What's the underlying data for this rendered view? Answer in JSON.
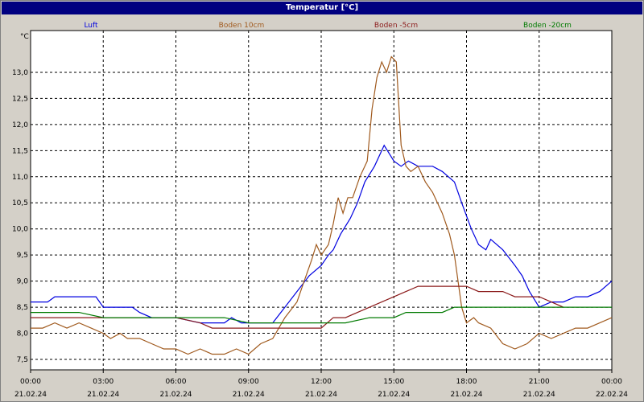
{
  "window": {
    "title": "Temperatur [°C]"
  },
  "colors": {
    "luft": "#0000e0",
    "boden10": "#a05a1e",
    "boden5": "#8b1a1a",
    "boden20": "#007a00",
    "background": "#d4d0c8",
    "titlebar": "#000080"
  },
  "chart_data": {
    "type": "line",
    "title": "Temperatur [°C]",
    "ylabel": "°C",
    "ylim": [
      7.3,
      13.8
    ],
    "xlim": [
      0,
      24
    ],
    "grid": true,
    "legend": "top",
    "yticks": [
      "7,5",
      "8,0",
      "8,5",
      "9,0",
      "9,5",
      "10,0",
      "10,5",
      "11,0",
      "11,5",
      "12,0",
      "12,5",
      "13,0"
    ],
    "ytick_values": [
      7.5,
      8.0,
      8.5,
      9.0,
      9.5,
      10.0,
      10.5,
      11.0,
      11.5,
      12.0,
      12.5,
      13.0
    ],
    "xtick_values": [
      0,
      3,
      6,
      9,
      12,
      15,
      18,
      21,
      24
    ],
    "xticks": [
      {
        "time": "00:00",
        "date": "21.02.24"
      },
      {
        "time": "03:00",
        "date": "21.02.24"
      },
      {
        "time": "06:00",
        "date": "21.02.24"
      },
      {
        "time": "09:00",
        "date": "21.02.24"
      },
      {
        "time": "12:00",
        "date": "21.02.24"
      },
      {
        "time": "15:00",
        "date": "21.02.24"
      },
      {
        "time": "18:00",
        "date": "21.02.24"
      },
      {
        "time": "21:00",
        "date": "21.02.24"
      },
      {
        "time": "00:00",
        "date": "22.02.24"
      }
    ],
    "series": [
      {
        "name": "Luft",
        "color": "#0000e0",
        "points": [
          [
            0,
            8.6
          ],
          [
            0.7,
            8.6
          ],
          [
            1,
            8.7
          ],
          [
            2.7,
            8.7
          ],
          [
            3,
            8.5
          ],
          [
            4.2,
            8.5
          ],
          [
            4.5,
            8.4
          ],
          [
            5,
            8.3
          ],
          [
            6,
            8.3
          ],
          [
            7,
            8.2
          ],
          [
            7.5,
            8.2
          ],
          [
            8,
            8.2
          ],
          [
            8.3,
            8.3
          ],
          [
            8.7,
            8.2
          ],
          [
            9.3,
            8.2
          ],
          [
            10,
            8.2
          ],
          [
            10.5,
            8.5
          ],
          [
            11,
            8.8
          ],
          [
            11.5,
            9.1
          ],
          [
            12,
            9.3
          ],
          [
            12.3,
            9.5
          ],
          [
            12.5,
            9.6
          ],
          [
            12.8,
            9.9
          ],
          [
            13.2,
            10.2
          ],
          [
            13.5,
            10.5
          ],
          [
            13.8,
            10.9
          ],
          [
            14.2,
            11.2
          ],
          [
            14.6,
            11.6
          ],
          [
            15,
            11.3
          ],
          [
            15.3,
            11.2
          ],
          [
            15.6,
            11.3
          ],
          [
            16,
            11.2
          ],
          [
            16.6,
            11.2
          ],
          [
            17,
            11.1
          ],
          [
            17.5,
            10.9
          ],
          [
            17.8,
            10.5
          ],
          [
            18.2,
            10.0
          ],
          [
            18.5,
            9.7
          ],
          [
            18.8,
            9.6
          ],
          [
            19,
            9.8
          ],
          [
            19.5,
            9.6
          ],
          [
            20,
            9.3
          ],
          [
            20.3,
            9.1
          ],
          [
            20.6,
            8.8
          ],
          [
            21,
            8.5
          ],
          [
            21.5,
            8.6
          ],
          [
            22,
            8.6
          ],
          [
            22.5,
            8.7
          ],
          [
            23,
            8.7
          ],
          [
            23.5,
            8.8
          ],
          [
            24,
            9.0
          ]
        ]
      },
      {
        "name": "Boden 10cm",
        "color": "#a05a1e",
        "points": [
          [
            0,
            8.1
          ],
          [
            0.5,
            8.1
          ],
          [
            1,
            8.2
          ],
          [
            1.5,
            8.1
          ],
          [
            2,
            8.2
          ],
          [
            2.5,
            8.1
          ],
          [
            3,
            8.0
          ],
          [
            3.3,
            7.9
          ],
          [
            3.7,
            8.0
          ],
          [
            4,
            7.9
          ],
          [
            4.5,
            7.9
          ],
          [
            5,
            7.8
          ],
          [
            5.5,
            7.7
          ],
          [
            6,
            7.7
          ],
          [
            6.5,
            7.6
          ],
          [
            7,
            7.7
          ],
          [
            7.5,
            7.6
          ],
          [
            8,
            7.6
          ],
          [
            8.5,
            7.7
          ],
          [
            9,
            7.6
          ],
          [
            9.5,
            7.8
          ],
          [
            10,
            7.9
          ],
          [
            10.5,
            8.3
          ],
          [
            11,
            8.6
          ],
          [
            11.3,
            9.0
          ],
          [
            11.6,
            9.4
          ],
          [
            11.8,
            9.7
          ],
          [
            12,
            9.5
          ],
          [
            12.3,
            9.7
          ],
          [
            12.5,
            10.1
          ],
          [
            12.7,
            10.6
          ],
          [
            12.9,
            10.3
          ],
          [
            13.1,
            10.6
          ],
          [
            13.3,
            10.6
          ],
          [
            13.6,
            11.0
          ],
          [
            13.9,
            11.3
          ],
          [
            14.1,
            12.3
          ],
          [
            14.3,
            12.9
          ],
          [
            14.5,
            13.2
          ],
          [
            14.7,
            13.0
          ],
          [
            14.9,
            13.3
          ],
          [
            15.1,
            13.2
          ],
          [
            15.3,
            11.6
          ],
          [
            15.5,
            11.2
          ],
          [
            15.7,
            11.1
          ],
          [
            16,
            11.2
          ],
          [
            16.3,
            10.9
          ],
          [
            16.6,
            10.7
          ],
          [
            17,
            10.3
          ],
          [
            17.3,
            9.9
          ],
          [
            17.5,
            9.5
          ],
          [
            17.8,
            8.5
          ],
          [
            18,
            8.2
          ],
          [
            18.3,
            8.3
          ],
          [
            18.5,
            8.2
          ],
          [
            19,
            8.1
          ],
          [
            19.5,
            7.8
          ],
          [
            20,
            7.7
          ],
          [
            20.5,
            7.8
          ],
          [
            21,
            8.0
          ],
          [
            21.5,
            7.9
          ],
          [
            22,
            8.0
          ],
          [
            22.5,
            8.1
          ],
          [
            23,
            8.1
          ],
          [
            23.5,
            8.2
          ],
          [
            24,
            8.3
          ]
        ]
      },
      {
        "name": "Boden -5cm",
        "color": "#8b1a1a",
        "points": [
          [
            0,
            8.3
          ],
          [
            1,
            8.3
          ],
          [
            2,
            8.3
          ],
          [
            3,
            8.3
          ],
          [
            4,
            8.3
          ],
          [
            5,
            8.3
          ],
          [
            6,
            8.3
          ],
          [
            7,
            8.2
          ],
          [
            7.5,
            8.1
          ],
          [
            8,
            8.1
          ],
          [
            9,
            8.1
          ],
          [
            10,
            8.1
          ],
          [
            11,
            8.1
          ],
          [
            12,
            8.1
          ],
          [
            12.5,
            8.3
          ],
          [
            13,
            8.3
          ],
          [
            13.5,
            8.4
          ],
          [
            14,
            8.5
          ],
          [
            14.5,
            8.6
          ],
          [
            15,
            8.7
          ],
          [
            15.5,
            8.8
          ],
          [
            16,
            8.9
          ],
          [
            17,
            8.9
          ],
          [
            18,
            8.9
          ],
          [
            18.5,
            8.8
          ],
          [
            19,
            8.8
          ],
          [
            19.5,
            8.8
          ],
          [
            20,
            8.7
          ],
          [
            20.5,
            8.7
          ],
          [
            21,
            8.7
          ],
          [
            21.5,
            8.6
          ],
          [
            22,
            8.5
          ]
        ]
      },
      {
        "name": "Boden -20cm",
        "color": "#007a00",
        "points": [
          [
            0,
            8.4
          ],
          [
            1,
            8.4
          ],
          [
            2,
            8.4
          ],
          [
            3,
            8.3
          ],
          [
            4,
            8.3
          ],
          [
            5,
            8.3
          ],
          [
            6,
            8.3
          ],
          [
            7,
            8.3
          ],
          [
            8,
            8.3
          ],
          [
            9,
            8.2
          ],
          [
            10,
            8.2
          ],
          [
            11,
            8.2
          ],
          [
            12,
            8.2
          ],
          [
            13,
            8.2
          ],
          [
            14,
            8.3
          ],
          [
            15,
            8.3
          ],
          [
            15.5,
            8.4
          ],
          [
            16,
            8.4
          ],
          [
            17,
            8.4
          ],
          [
            17.5,
            8.5
          ],
          [
            18,
            8.5
          ],
          [
            19,
            8.5
          ],
          [
            20,
            8.5
          ],
          [
            21,
            8.5
          ],
          [
            22,
            8.5
          ],
          [
            23,
            8.5
          ],
          [
            24,
            8.5
          ]
        ]
      }
    ]
  }
}
